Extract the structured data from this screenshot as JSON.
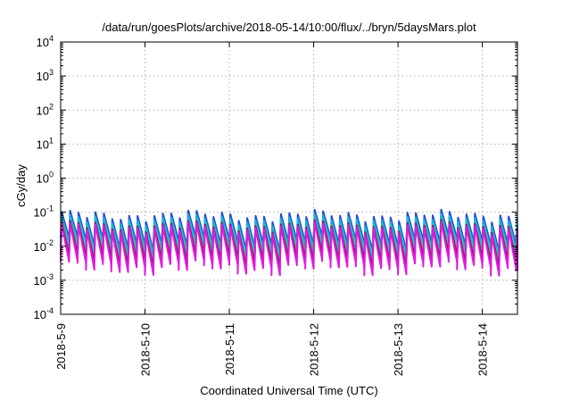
{
  "chart_data": {
    "type": "line",
    "title": "/data/run/goesPlots/archive/2018-05-14/10:00/flux/../bryn/5daysMars.plot",
    "xlabel": "Coordinated Universal Time (UTC)",
    "ylabel": "cGy/day",
    "yscale": "log",
    "ylim": [
      0.0001,
      10000
    ],
    "y_ticks": [
      {
        "value": 0.0001,
        "base": "10",
        "exp": "-4"
      },
      {
        "value": 0.001,
        "base": "10",
        "exp": "-3"
      },
      {
        "value": 0.01,
        "base": "10",
        "exp": "-2"
      },
      {
        "value": 0.1,
        "base": "10",
        "exp": "-1"
      },
      {
        "value": 1,
        "base": "10",
        "exp": "0"
      },
      {
        "value": 10,
        "base": "10",
        "exp": "1"
      },
      {
        "value": 100,
        "base": "10",
        "exp": "2"
      },
      {
        "value": 1000,
        "base": "10",
        "exp": "3"
      },
      {
        "value": 10000,
        "base": "10",
        "exp": "4"
      }
    ],
    "xlim": [
      "2018-05-09 00:00",
      "2018-05-14 10:00"
    ],
    "x_ticks": [
      "2018-5-9",
      "2018-5-10",
      "2018-5-11",
      "2018-5-12",
      "2018-5-13",
      "2018-5-14"
    ],
    "grid": true,
    "legend": "none",
    "pattern": {
      "description": "sawtooth, sharp rise then gradual decay",
      "cycles_per_day": 10
    },
    "series": [
      {
        "color": "#1f4fd8",
        "peak": 0.08,
        "trough": 0.012
      },
      {
        "color": "#19aee0",
        "peak": 0.06,
        "trough": 0.009
      },
      {
        "color": "#2ec8a0",
        "peak": 0.045,
        "trough": 0.007
      },
      {
        "color": "#8a1a6a",
        "peak": 0.04,
        "trough": 0.004
      },
      {
        "color": "#e01ae0",
        "peak": 0.035,
        "trough": 0.0025
      }
    ]
  }
}
